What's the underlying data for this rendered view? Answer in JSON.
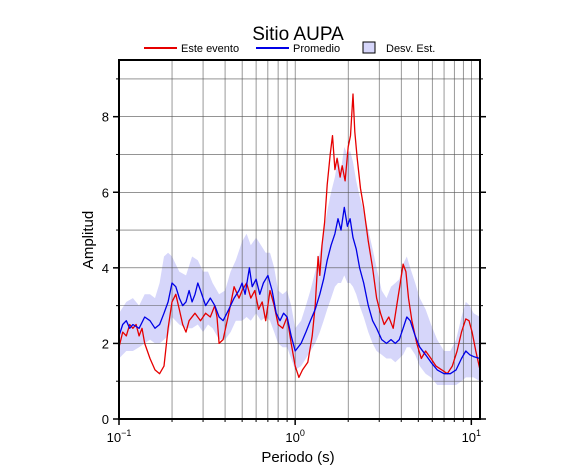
{
  "chart_data": {
    "type": "line",
    "title": "Sitio AUPA",
    "xlabel": "Periodo (s)",
    "ylabel": "Amplitud",
    "x_scale": "log",
    "xlim": [
      0.1,
      11.2
    ],
    "ylim": [
      0,
      9.5
    ],
    "x_ticks": [
      {
        "value": 0.1,
        "base": "10",
        "exp": "−1"
      },
      {
        "value": 1,
        "base": "10",
        "exp": "0"
      },
      {
        "value": 10,
        "base": "10",
        "exp": "1"
      }
    ],
    "y_ticks": [
      0,
      2,
      4,
      6,
      8
    ],
    "grid": true,
    "legend": {
      "placement": "top",
      "entries": [
        {
          "label": "Este evento",
          "color": "#e60000",
          "kind": "line"
        },
        {
          "label": "Promedio",
          "color": "#0000e6",
          "kind": "line"
        },
        {
          "label": "Desv. Est.",
          "color": "#d6d6fa",
          "kind": "patch"
        }
      ]
    },
    "series": [
      {
        "name": "Este evento",
        "color": "#e60000",
        "points": [
          [
            0.1,
            1.9
          ],
          [
            0.105,
            2.3
          ],
          [
            0.11,
            2.2
          ],
          [
            0.115,
            2.5
          ],
          [
            0.12,
            2.4
          ],
          [
            0.125,
            2.5
          ],
          [
            0.13,
            2.2
          ],
          [
            0.135,
            2.4
          ],
          [
            0.14,
            2.0
          ],
          [
            0.15,
            1.6
          ],
          [
            0.16,
            1.3
          ],
          [
            0.17,
            1.2
          ],
          [
            0.18,
            1.4
          ],
          [
            0.19,
            2.4
          ],
          [
            0.2,
            3.1
          ],
          [
            0.21,
            3.3
          ],
          [
            0.22,
            2.9
          ],
          [
            0.23,
            2.5
          ],
          [
            0.24,
            2.3
          ],
          [
            0.25,
            2.6
          ],
          [
            0.27,
            2.8
          ],
          [
            0.29,
            2.6
          ],
          [
            0.31,
            2.8
          ],
          [
            0.33,
            2.7
          ],
          [
            0.35,
            3.0
          ],
          [
            0.36,
            2.7
          ],
          [
            0.37,
            2.0
          ],
          [
            0.39,
            2.1
          ],
          [
            0.42,
            2.8
          ],
          [
            0.45,
            3.5
          ],
          [
            0.48,
            3.2
          ],
          [
            0.5,
            3.4
          ],
          [
            0.53,
            3.6
          ],
          [
            0.56,
            3.2
          ],
          [
            0.59,
            3.4
          ],
          [
            0.62,
            2.9
          ],
          [
            0.65,
            3.1
          ],
          [
            0.68,
            2.6
          ],
          [
            0.72,
            3.4
          ],
          [
            0.76,
            3.0
          ],
          [
            0.8,
            2.5
          ],
          [
            0.85,
            2.4
          ],
          [
            0.9,
            2.7
          ],
          [
            0.95,
            2.0
          ],
          [
            1.0,
            1.4
          ],
          [
            1.05,
            1.1
          ],
          [
            1.1,
            1.3
          ],
          [
            1.18,
            1.5
          ],
          [
            1.25,
            2.2
          ],
          [
            1.3,
            3.0
          ],
          [
            1.35,
            4.3
          ],
          [
            1.38,
            3.8
          ],
          [
            1.42,
            4.6
          ],
          [
            1.47,
            5.2
          ],
          [
            1.52,
            6.2
          ],
          [
            1.58,
            7.0
          ],
          [
            1.63,
            7.5
          ],
          [
            1.68,
            6.6
          ],
          [
            1.73,
            6.9
          ],
          [
            1.8,
            6.4
          ],
          [
            1.85,
            6.7
          ],
          [
            1.92,
            6.3
          ],
          [
            2.0,
            7.2
          ],
          [
            2.06,
            7.5
          ],
          [
            2.13,
            8.6
          ],
          [
            2.18,
            7.6
          ],
          [
            2.25,
            6.9
          ],
          [
            2.35,
            6.1
          ],
          [
            2.45,
            5.6
          ],
          [
            2.6,
            4.7
          ],
          [
            2.75,
            4.0
          ],
          [
            2.9,
            3.2
          ],
          [
            3.05,
            2.8
          ],
          [
            3.2,
            2.5
          ],
          [
            3.4,
            2.7
          ],
          [
            3.6,
            2.4
          ],
          [
            3.8,
            3.1
          ],
          [
            3.95,
            3.6
          ],
          [
            4.1,
            4.1
          ],
          [
            4.25,
            3.9
          ],
          [
            4.4,
            3.2
          ],
          [
            4.6,
            2.6
          ],
          [
            4.9,
            2.0
          ],
          [
            5.2,
            1.6
          ],
          [
            5.5,
            1.8
          ],
          [
            5.9,
            1.6
          ],
          [
            6.3,
            1.4
          ],
          [
            6.8,
            1.3
          ],
          [
            7.3,
            1.2
          ],
          [
            7.8,
            1.4
          ],
          [
            8.3,
            1.8
          ],
          [
            8.8,
            2.3
          ],
          [
            9.3,
            2.65
          ],
          [
            9.7,
            2.6
          ],
          [
            10.1,
            2.3
          ],
          [
            10.6,
            1.8
          ],
          [
            11.2,
            1.3
          ]
        ]
      },
      {
        "name": "Promedio",
        "color": "#0000e6",
        "points": [
          [
            0.1,
            2.2
          ],
          [
            0.105,
            2.5
          ],
          [
            0.11,
            2.6
          ],
          [
            0.115,
            2.4
          ],
          [
            0.12,
            2.5
          ],
          [
            0.13,
            2.4
          ],
          [
            0.14,
            2.7
          ],
          [
            0.15,
            2.6
          ],
          [
            0.16,
            2.4
          ],
          [
            0.17,
            2.5
          ],
          [
            0.18,
            2.8
          ],
          [
            0.19,
            3.1
          ],
          [
            0.2,
            3.6
          ],
          [
            0.21,
            3.5
          ],
          [
            0.22,
            3.2
          ],
          [
            0.23,
            3.0
          ],
          [
            0.24,
            3.1
          ],
          [
            0.25,
            3.4
          ],
          [
            0.26,
            3.1
          ],
          [
            0.27,
            3.3
          ],
          [
            0.28,
            3.6
          ],
          [
            0.29,
            3.4
          ],
          [
            0.31,
            3.0
          ],
          [
            0.33,
            3.2
          ],
          [
            0.35,
            3.0
          ],
          [
            0.37,
            2.7
          ],
          [
            0.39,
            2.6
          ],
          [
            0.42,
            2.9
          ],
          [
            0.45,
            3.2
          ],
          [
            0.48,
            3.4
          ],
          [
            0.5,
            3.6
          ],
          [
            0.52,
            3.3
          ],
          [
            0.55,
            4.0
          ],
          [
            0.57,
            3.5
          ],
          [
            0.6,
            3.7
          ],
          [
            0.63,
            3.3
          ],
          [
            0.66,
            3.6
          ],
          [
            0.7,
            3.8
          ],
          [
            0.74,
            3.4
          ],
          [
            0.78,
            2.8
          ],
          [
            0.82,
            2.6
          ],
          [
            0.86,
            2.8
          ],
          [
            0.9,
            2.7
          ],
          [
            0.95,
            2.2
          ],
          [
            1.0,
            1.8
          ],
          [
            1.08,
            2.0
          ],
          [
            1.15,
            2.3
          ],
          [
            1.22,
            2.6
          ],
          [
            1.3,
            2.9
          ],
          [
            1.38,
            3.3
          ],
          [
            1.45,
            3.7
          ],
          [
            1.52,
            4.2
          ],
          [
            1.6,
            4.6
          ],
          [
            1.68,
            4.9
          ],
          [
            1.75,
            5.3
          ],
          [
            1.82,
            5.0
          ],
          [
            1.9,
            5.6
          ],
          [
            1.98,
            5.1
          ],
          [
            2.05,
            5.3
          ],
          [
            2.13,
            4.8
          ],
          [
            2.22,
            4.5
          ],
          [
            2.32,
            4.0
          ],
          [
            2.45,
            3.6
          ],
          [
            2.6,
            3.0
          ],
          [
            2.75,
            2.6
          ],
          [
            2.9,
            2.4
          ],
          [
            3.1,
            2.1
          ],
          [
            3.3,
            2.0
          ],
          [
            3.5,
            2.1
          ],
          [
            3.7,
            2.0
          ],
          [
            3.9,
            2.1
          ],
          [
            4.1,
            2.4
          ],
          [
            4.3,
            2.7
          ],
          [
            4.5,
            2.6
          ],
          [
            4.8,
            2.2
          ],
          [
            5.1,
            1.9
          ],
          [
            5.5,
            1.7
          ],
          [
            5.9,
            1.5
          ],
          [
            6.4,
            1.3
          ],
          [
            7.0,
            1.2
          ],
          [
            7.6,
            1.2
          ],
          [
            8.2,
            1.3
          ],
          [
            8.8,
            1.6
          ],
          [
            9.3,
            1.8
          ],
          [
            9.8,
            1.7
          ],
          [
            10.3,
            1.65
          ],
          [
            11.2,
            1.6
          ]
        ]
      }
    ],
    "band": {
      "name": "Desv. Est.",
      "color": "#d6d6fa",
      "points": [
        [
          0.1,
          1.6,
          2.8
        ],
        [
          0.11,
          1.8,
          3.1
        ],
        [
          0.12,
          1.8,
          3.2
        ],
        [
          0.13,
          1.9,
          3.0
        ],
        [
          0.14,
          2.0,
          3.3
        ],
        [
          0.15,
          2.1,
          3.3
        ],
        [
          0.16,
          2.0,
          3.2
        ],
        [
          0.17,
          2.0,
          3.6
        ],
        [
          0.18,
          2.1,
          4.3
        ],
        [
          0.19,
          2.2,
          4.4
        ],
        [
          0.2,
          2.7,
          4.3
        ],
        [
          0.22,
          2.5,
          3.9
        ],
        [
          0.24,
          2.4,
          3.8
        ],
        [
          0.26,
          2.4,
          4.3
        ],
        [
          0.28,
          2.5,
          4.2
        ],
        [
          0.3,
          2.3,
          3.9
        ],
        [
          0.32,
          2.5,
          3.9
        ],
        [
          0.34,
          2.4,
          3.6
        ],
        [
          0.37,
          2.1,
          3.3
        ],
        [
          0.4,
          2.1,
          3.4
        ],
        [
          0.43,
          2.3,
          3.9
        ],
        [
          0.46,
          2.6,
          4.2
        ],
        [
          0.5,
          2.6,
          4.7
        ],
        [
          0.53,
          2.7,
          4.9
        ],
        [
          0.56,
          2.6,
          4.6
        ],
        [
          0.6,
          2.8,
          4.8
        ],
        [
          0.64,
          2.6,
          4.6
        ],
        [
          0.68,
          2.7,
          4.4
        ],
        [
          0.72,
          2.6,
          4.4
        ],
        [
          0.76,
          2.3,
          4.0
        ],
        [
          0.8,
          2.0,
          3.4
        ],
        [
          0.85,
          1.9,
          3.3
        ],
        [
          0.9,
          1.9,
          3.4
        ],
        [
          0.95,
          1.6,
          3.0
        ],
        [
          1.0,
          1.3,
          2.4
        ],
        [
          1.08,
          1.4,
          2.6
        ],
        [
          1.15,
          1.6,
          3.0
        ],
        [
          1.22,
          1.8,
          3.4
        ],
        [
          1.3,
          2.0,
          3.9
        ],
        [
          1.38,
          2.3,
          4.4
        ],
        [
          1.45,
          2.6,
          4.9
        ],
        [
          1.52,
          2.9,
          5.5
        ],
        [
          1.6,
          3.2,
          6.0
        ],
        [
          1.68,
          3.5,
          6.4
        ],
        [
          1.75,
          3.6,
          6.9
        ],
        [
          1.82,
          3.6,
          6.6
        ],
        [
          1.9,
          3.8,
          7.2
        ],
        [
          1.98,
          3.6,
          7.0
        ],
        [
          2.05,
          3.6,
          7.1
        ],
        [
          2.13,
          3.5,
          6.8
        ],
        [
          2.22,
          3.3,
          6.3
        ],
        [
          2.32,
          3.0,
          5.9
        ],
        [
          2.45,
          2.7,
          5.5
        ],
        [
          2.6,
          2.3,
          5.0
        ],
        [
          2.75,
          2.0,
          4.5
        ],
        [
          2.9,
          1.8,
          4.0
        ],
        [
          3.1,
          1.7,
          3.4
        ],
        [
          3.3,
          1.6,
          3.2
        ],
        [
          3.5,
          1.6,
          3.5
        ],
        [
          3.7,
          1.5,
          3.6
        ],
        [
          3.9,
          1.6,
          3.7
        ],
        [
          4.1,
          1.7,
          4.1
        ],
        [
          4.3,
          1.9,
          4.3
        ],
        [
          4.5,
          1.9,
          4.0
        ],
        [
          4.8,
          1.7,
          3.6
        ],
        [
          5.1,
          1.4,
          3.2
        ],
        [
          5.5,
          1.2,
          2.9
        ],
        [
          5.9,
          1.1,
          2.5
        ],
        [
          6.4,
          0.9,
          2.1
        ],
        [
          7.0,
          0.9,
          1.8
        ],
        [
          7.6,
          0.9,
          1.8
        ],
        [
          8.2,
          0.9,
          2.1
        ],
        [
          8.8,
          1.0,
          2.7
        ],
        [
          9.3,
          1.1,
          3.1
        ],
        [
          9.8,
          1.1,
          3.0
        ],
        [
          10.3,
          1.1,
          2.8
        ],
        [
          11.2,
          1.0,
          2.7
        ]
      ]
    }
  }
}
